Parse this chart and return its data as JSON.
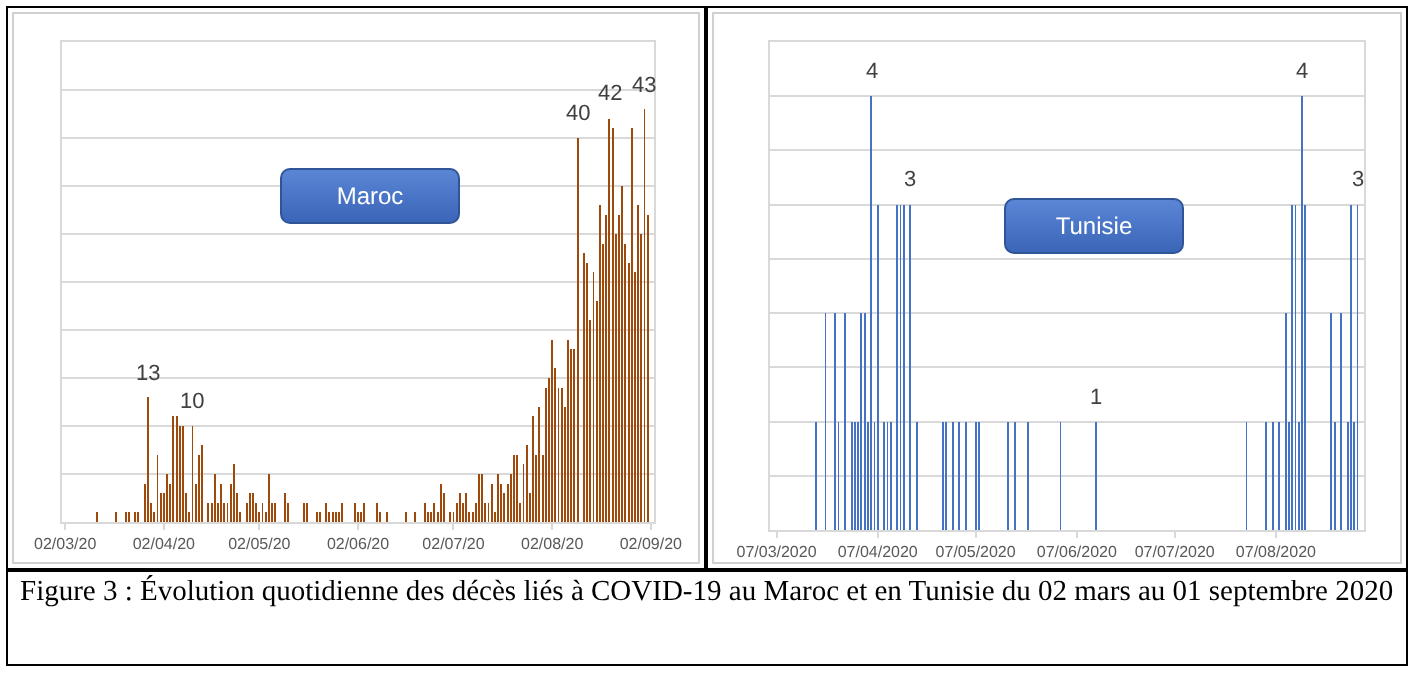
{
  "chart_data": [
    {
      "type": "bar",
      "title": "Maroc",
      "color": "#9e4a0c",
      "grid": "y",
      "tick_labels": "x",
      "x": [
        "2020-03-12",
        "2020-03-18",
        "2020-03-21",
        "2020-03-22",
        "2020-03-24",
        "2020-03-25",
        "2020-03-27",
        "2020-03-28",
        "2020-03-29",
        "2020-03-30",
        "2020-03-31",
        "2020-04-01",
        "2020-04-02",
        "2020-04-03",
        "2020-04-04",
        "2020-04-05",
        "2020-04-06",
        "2020-04-07",
        "2020-04-08",
        "2020-04-09",
        "2020-04-10",
        "2020-04-11",
        "2020-04-12",
        "2020-04-13",
        "2020-04-14",
        "2020-04-16",
        "2020-04-17",
        "2020-04-18",
        "2020-04-19",
        "2020-04-20",
        "2020-04-21",
        "2020-04-22",
        "2020-04-23",
        "2020-04-24",
        "2020-04-25",
        "2020-04-26",
        "2020-04-28",
        "2020-04-29",
        "2020-04-30",
        "2020-05-01",
        "2020-05-02",
        "2020-05-03",
        "2020-05-04",
        "2020-05-05",
        "2020-05-06",
        "2020-05-07",
        "2020-05-10",
        "2020-05-11",
        "2020-05-16",
        "2020-05-17",
        "2020-05-20",
        "2020-05-21",
        "2020-05-23",
        "2020-05-24",
        "2020-05-25",
        "2020-05-26",
        "2020-05-27",
        "2020-05-28",
        "2020-06-01",
        "2020-06-02",
        "2020-06-03",
        "2020-06-04",
        "2020-06-08",
        "2020-06-09",
        "2020-06-11",
        "2020-06-17",
        "2020-06-20",
        "2020-06-23",
        "2020-06-24",
        "2020-06-25",
        "2020-06-26",
        "2020-06-27",
        "2020-06-28",
        "2020-06-29",
        "2020-07-01",
        "2020-07-02",
        "2020-07-03",
        "2020-07-04",
        "2020-07-05",
        "2020-07-06",
        "2020-07-07",
        "2020-07-08",
        "2020-07-09",
        "2020-07-10",
        "2020-07-11",
        "2020-07-12",
        "2020-07-13",
        "2020-07-14",
        "2020-07-15",
        "2020-07-16",
        "2020-07-17",
        "2020-07-18",
        "2020-07-19",
        "2020-07-20",
        "2020-07-21",
        "2020-07-22",
        "2020-07-23",
        "2020-07-24",
        "2020-07-25",
        "2020-07-26",
        "2020-07-27",
        "2020-07-28",
        "2020-07-29",
        "2020-07-30",
        "2020-07-31",
        "2020-08-01",
        "2020-08-02",
        "2020-08-03",
        "2020-08-04",
        "2020-08-05",
        "2020-08-06",
        "2020-08-07",
        "2020-08-08",
        "2020-08-09",
        "2020-08-10",
        "2020-08-12",
        "2020-08-13",
        "2020-08-14",
        "2020-08-15",
        "2020-08-16",
        "2020-08-17",
        "2020-08-18",
        "2020-08-19",
        "2020-08-20",
        "2020-08-21",
        "2020-08-22",
        "2020-08-23",
        "2020-08-24",
        "2020-08-25",
        "2020-08-26",
        "2020-08-27",
        "2020-08-28",
        "2020-08-29",
        "2020-08-30",
        "2020-08-31",
        "2020-09-01"
      ],
      "values": [
        1,
        1,
        1,
        1,
        1,
        1,
        4,
        13,
        2,
        1,
        7,
        3,
        3,
        5,
        4,
        11,
        11,
        10,
        10,
        3,
        1,
        10,
        4,
        7,
        8,
        2,
        2,
        5,
        2,
        4,
        2,
        2,
        4,
        6,
        3,
        1,
        2,
        3,
        3,
        2,
        1,
        2,
        1,
        5,
        2,
        2,
        3,
        2,
        2,
        2,
        1,
        1,
        2,
        1,
        1,
        1,
        1,
        2,
        2,
        1,
        1,
        2,
        2,
        1,
        1,
        1,
        1,
        2,
        1,
        1,
        2,
        1,
        4,
        3,
        1,
        1,
        2,
        3,
        2,
        3,
        1,
        1,
        2,
        5,
        5,
        2,
        2,
        4,
        1,
        5,
        4,
        3,
        4,
        5,
        7,
        7,
        2,
        6,
        8,
        3,
        11,
        7,
        12,
        7,
        14,
        15,
        19,
        16,
        14,
        14,
        12,
        19,
        18,
        18,
        40,
        28,
        27,
        21,
        26,
        23,
        33,
        29,
        32,
        42,
        41,
        30,
        32,
        35,
        29,
        27,
        41,
        26,
        33,
        30,
        43,
        32
      ],
      "value_labels": [
        null,
        null,
        null,
        null,
        null,
        null,
        null,
        "13",
        null,
        null,
        null,
        null,
        null,
        null,
        null,
        null,
        null,
        null,
        null,
        null,
        null,
        "10",
        null,
        null,
        null,
        null,
        null,
        null,
        null,
        null,
        null,
        null,
        null,
        null,
        null,
        null,
        null,
        null,
        null,
        null,
        null,
        null,
        null,
        null,
        null,
        null,
        null,
        null,
        null,
        null,
        null,
        null,
        null,
        null,
        null,
        null,
        null,
        null,
        null,
        null,
        null,
        null,
        null,
        null,
        null,
        null,
        null,
        null,
        null,
        null,
        null,
        null,
        null,
        null,
        null,
        null,
        null,
        null,
        null,
        null,
        null,
        null,
        null,
        null,
        null,
        null,
        null,
        null,
        null,
        null,
        null,
        null,
        null,
        null,
        null,
        null,
        null,
        null,
        null,
        null,
        null,
        null,
        null,
        null,
        null,
        null,
        null,
        null,
        null,
        null,
        null,
        null,
        null,
        null,
        "40",
        null,
        null,
        null,
        null,
        null,
        null,
        null,
        null,
        "42",
        null,
        null,
        null,
        null,
        null,
        null,
        null,
        null,
        null,
        null,
        "43",
        null
      ],
      "xlim": [
        "2020-03-01",
        "2020-09-03"
      ],
      "xticks": [
        {
          "value": "2020-03-02",
          "label": "02/03/20"
        },
        {
          "value": "2020-04-02",
          "label": "02/04/20"
        },
        {
          "value": "2020-05-02",
          "label": "02/05/20"
        },
        {
          "value": "2020-06-02",
          "label": "02/06/20"
        },
        {
          "value": "2020-07-02",
          "label": "02/07/20"
        },
        {
          "value": "2020-08-02",
          "label": "02/08/20"
        },
        {
          "value": "2020-09-02",
          "label": "02/09/20"
        }
      ],
      "ylim": [
        0,
        50
      ],
      "yticks": [
        {
          "value": 0,
          "label": null
        },
        {
          "value": 5,
          "label": null
        },
        {
          "value": 10,
          "label": null
        },
        {
          "value": 15,
          "label": null
        },
        {
          "value": 20,
          "label": null
        },
        {
          "value": 25,
          "label": null
        },
        {
          "value": 30,
          "label": null
        },
        {
          "value": 35,
          "label": null
        },
        {
          "value": 40,
          "label": null
        },
        {
          "value": 45,
          "label": null
        }
      ],
      "annotations": [
        "Figure 3 : Évolution quotidienne des décès liés à COVID-19 au Maroc et en Tunisie du 02 mars au 01 septembre 2020"
      ]
    },
    {
      "type": "bar",
      "title": "Tunisie",
      "color": "#4472c4",
      "grid": "y",
      "tick_labels": "x",
      "x": [
        "2020-03-19",
        "2020-03-22",
        "2020-03-25",
        "2020-03-26",
        "2020-03-28",
        "2020-03-30",
        "2020-03-31",
        "2020-04-01",
        "2020-04-02",
        "2020-04-03",
        "2020-04-04",
        "2020-04-05",
        "2020-04-06",
        "2020-04-07",
        "2020-04-09",
        "2020-04-10",
        "2020-04-11",
        "2020-04-13",
        "2020-04-14",
        "2020-04-15",
        "2020-04-17",
        "2020-04-19",
        "2020-04-27",
        "2020-04-28",
        "2020-04-30",
        "2020-05-02",
        "2020-05-04",
        "2020-05-07",
        "2020-05-08",
        "2020-05-17",
        "2020-05-19",
        "2020-05-23",
        "2020-06-02",
        "2020-06-13",
        "2020-07-29",
        "2020-08-04",
        "2020-08-06",
        "2020-08-08",
        "2020-08-10",
        "2020-08-11",
        "2020-08-12",
        "2020-08-13",
        "2020-08-14",
        "2020-08-15",
        "2020-08-16",
        "2020-08-24",
        "2020-08-25",
        "2020-08-27",
        "2020-08-29",
        "2020-08-30",
        "2020-08-31",
        "2020-09-01"
      ],
      "values": [
        1,
        2,
        2,
        1,
        2,
        1,
        1,
        1,
        2,
        2,
        1,
        4,
        1,
        3,
        1,
        1,
        1,
        3,
        3,
        3,
        3,
        1,
        1,
        1,
        1,
        1,
        1,
        1,
        1,
        1,
        1,
        1,
        1,
        1,
        1,
        1,
        1,
        1,
        2,
        1,
        3,
        3,
        1,
        4,
        3,
        2,
        1,
        2,
        1,
        3,
        1,
        3
      ],
      "value_labels": [
        null,
        null,
        null,
        null,
        null,
        null,
        null,
        null,
        null,
        null,
        null,
        "4",
        null,
        null,
        null,
        null,
        null,
        null,
        null,
        null,
        "3",
        null,
        null,
        null,
        null,
        null,
        null,
        null,
        null,
        null,
        null,
        null,
        null,
        "1",
        null,
        null,
        null,
        null,
        null,
        null,
        null,
        null,
        null,
        "4",
        null,
        null,
        null,
        null,
        null,
        null,
        null,
        "3"
      ],
      "xlim": [
        "2020-03-05",
        "2020-09-03"
      ],
      "xticks": [
        {
          "value": "2020-03-07",
          "label": "07/03/2020"
        },
        {
          "value": "2020-04-07",
          "label": "07/04/2020"
        },
        {
          "value": "2020-05-07",
          "label": "07/05/2020"
        },
        {
          "value": "2020-06-07",
          "label": "07/06/2020"
        },
        {
          "value": "2020-07-07",
          "label": "07/07/2020"
        },
        {
          "value": "2020-08-07",
          "label": "07/08/2020"
        }
      ],
      "ylim": [
        0,
        4.5
      ],
      "yticks": [
        {
          "value": 0,
          "label": null
        },
        {
          "value": 0.5,
          "label": null
        },
        {
          "value": 1,
          "label": null
        },
        {
          "value": 1.5,
          "label": null
        },
        {
          "value": 2,
          "label": null
        },
        {
          "value": 2.5,
          "label": null
        },
        {
          "value": 3,
          "label": null
        },
        {
          "value": 3.5,
          "label": null
        },
        {
          "value": 4,
          "label": null
        }
      ]
    }
  ]
}
